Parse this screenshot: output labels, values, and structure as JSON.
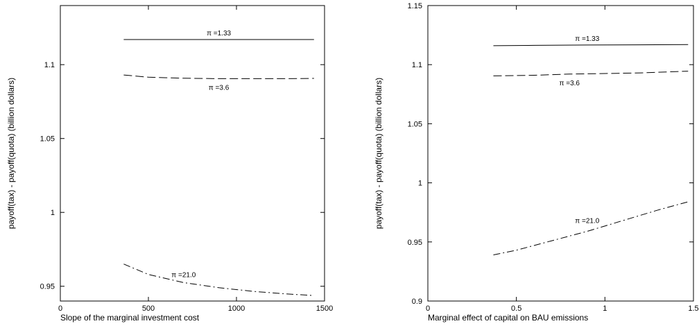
{
  "chart_data": [
    {
      "type": "line",
      "xlabel": "Slope of the marginal investment cost",
      "ylabel": "payoff(tax) - payoff(quota) (billion dollars)",
      "xlim": [
        0,
        1500
      ],
      "ylim": [
        0.94,
        1.14
      ],
      "xticks": [
        0,
        500,
        1000,
        1500
      ],
      "yticks": [
        0.95,
        1,
        1.05,
        1.1
      ],
      "ytick_labels": [
        "0.95",
        "1",
        "1.05",
        "1.1"
      ],
      "grid": false,
      "series": [
        {
          "name": "π =1.33",
          "style": "solid",
          "x": [
            360,
            600,
            900,
            1200,
            1440
          ],
          "y": [
            1.117,
            1.117,
            1.117,
            1.117,
            1.117
          ]
        },
        {
          "name": "π =3.6",
          "style": "dashed",
          "x": [
            360,
            500,
            700,
            900,
            1100,
            1300,
            1440
          ],
          "y": [
            1.093,
            1.0915,
            1.0908,
            1.0905,
            1.0905,
            1.0905,
            1.0907
          ]
        },
        {
          "name": "π =21.0",
          "style": "dashdot",
          "x": [
            360,
            500,
            700,
            900,
            1100,
            1300,
            1440
          ],
          "y": [
            0.965,
            0.958,
            0.9525,
            0.949,
            0.9465,
            0.9447,
            0.9437
          ]
        }
      ]
    },
    {
      "type": "line",
      "xlabel": "Marginal effect of capital on BAU emissions",
      "ylabel": "payoff(tax) - payoff(quota) (billion dollars)",
      "xlim": [
        0,
        1.5
      ],
      "ylim": [
        0.9,
        1.15
      ],
      "xticks": [
        0,
        0.5,
        1,
        1.5
      ],
      "xtick_labels": [
        "0",
        "0.5",
        "1",
        "1.5"
      ],
      "yticks": [
        0.9,
        0.95,
        1,
        1.05,
        1.1,
        1.15
      ],
      "ytick_labels": [
        "0.9",
        "0.95",
        "1",
        "1.05",
        "1.1",
        "1.15"
      ],
      "grid": false,
      "series": [
        {
          "name": "π =1.33",
          "style": "solid",
          "x": [
            0.37,
            0.6,
            0.9,
            1.2,
            1.47
          ],
          "y": [
            1.116,
            1.1163,
            1.1166,
            1.1168,
            1.117
          ]
        },
        {
          "name": "π =3.6",
          "style": "dashed",
          "x": [
            0.37,
            0.6,
            0.8,
            1.0,
            1.2,
            1.47
          ],
          "y": [
            1.0905,
            1.091,
            1.092,
            1.0925,
            1.093,
            1.0945
          ]
        },
        {
          "name": "π =21.0",
          "style": "dashdot",
          "x": [
            0.37,
            0.5,
            0.7,
            0.9,
            1.1,
            1.3,
            1.47
          ],
          "y": [
            0.939,
            0.943,
            0.951,
            0.959,
            0.968,
            0.977,
            0.984
          ]
        }
      ]
    }
  ]
}
